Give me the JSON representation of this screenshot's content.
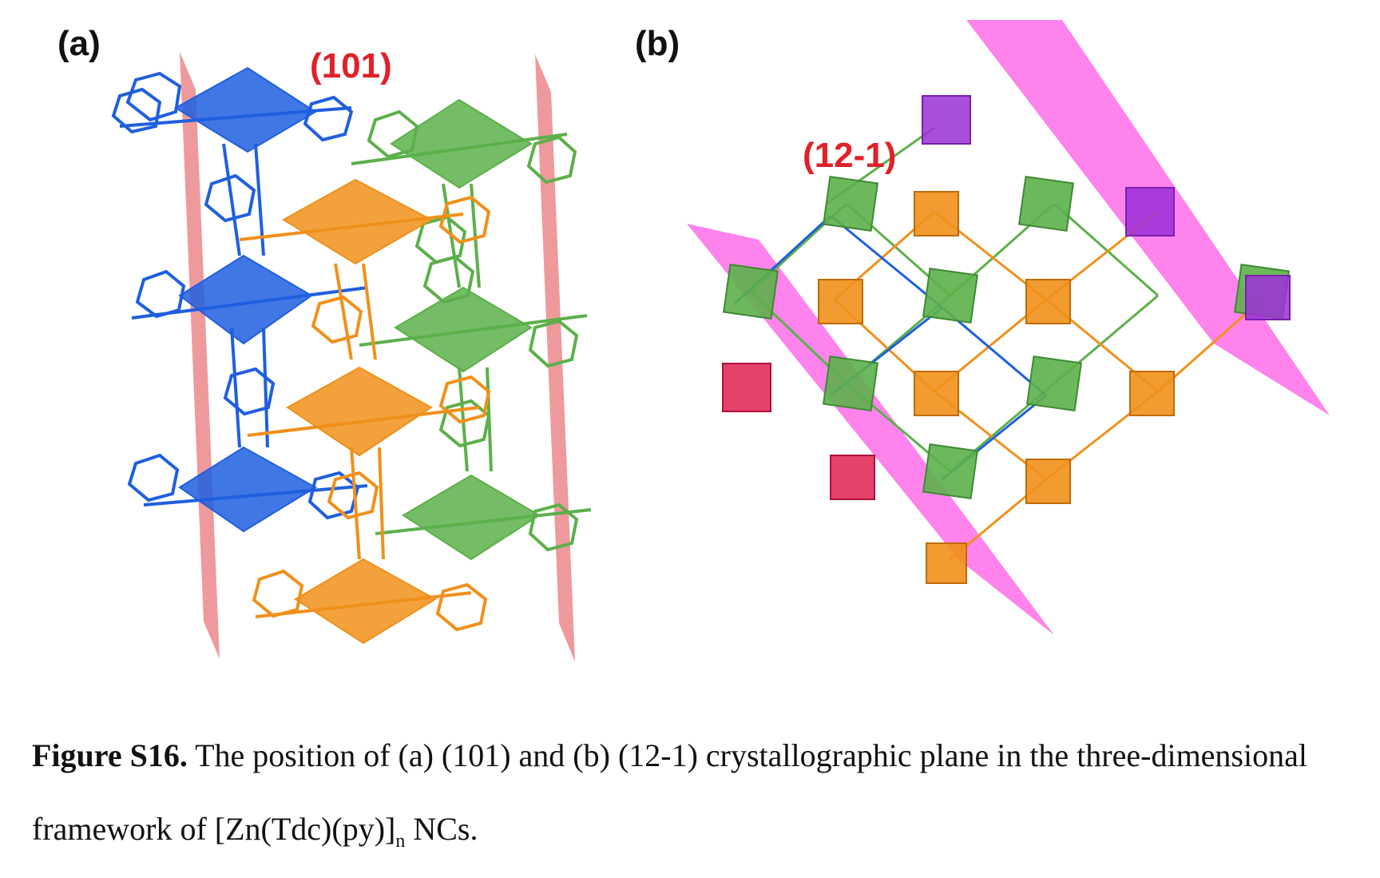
{
  "panel_a": {
    "letter": "(a)",
    "plane_label": "(101)"
  },
  "panel_b": {
    "letter": "(b)",
    "plane_label": "(12-1)"
  },
  "caption": {
    "lead": "Figure S16.",
    "text_1": " The position of (a) (101) and (b) (12-1) crystallographic plane in the three-dimensional framework of [Zn(Tdc)(py)]",
    "subscript": "n",
    "text_2": " NCs."
  },
  "colors": {
    "blue": "#1f5fe0",
    "orange": "#f0901a",
    "green": "#5cb04a",
    "plane_a": "#e8777a",
    "plane_b": "#ff4fe6",
    "label_red": "#e0202a"
  }
}
